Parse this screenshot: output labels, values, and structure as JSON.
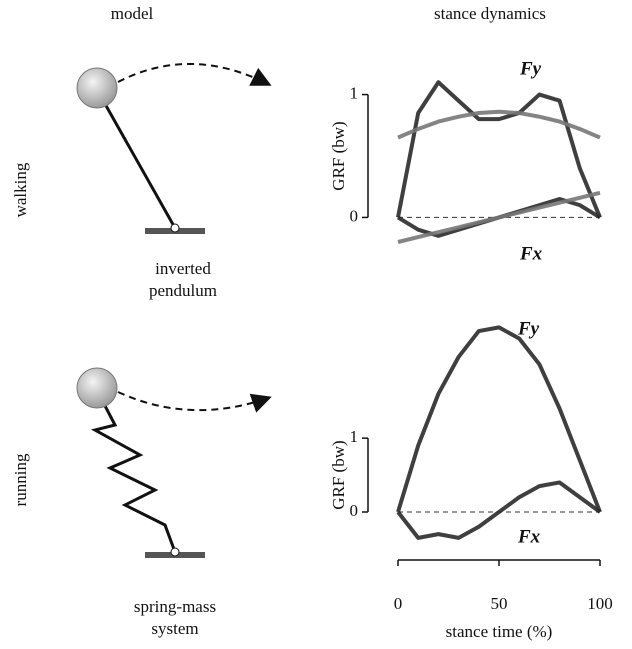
{
  "header": {
    "left": "model",
    "right": "stance dynamics"
  },
  "rows": [
    {
      "label": "walking",
      "model_label": [
        "inverted",
        "pendulum"
      ]
    },
    {
      "label": "running",
      "model_label": [
        "spring-mass",
        "system"
      ]
    }
  ],
  "chart_data": [
    {
      "type": "line",
      "ylabel": "GRF (bw)",
      "xlim": [
        0,
        100
      ],
      "ylim": [
        -0.2,
        1.2
      ],
      "yticks": [
        0,
        1
      ],
      "zero_line": true,
      "x": [
        0,
        10,
        20,
        30,
        40,
        50,
        60,
        70,
        80,
        90,
        100
      ],
      "series": [
        {
          "name": "Fy",
          "color": "#2a2a2a",
          "values": [
            0,
            0.85,
            1.1,
            0.95,
            0.8,
            0.8,
            0.85,
            1.0,
            0.95,
            0.4,
            0
          ]
        },
        {
          "name": "Fx",
          "color": "#2a2a2a",
          "values": [
            0,
            -0.1,
            -0.15,
            -0.1,
            -0.05,
            0,
            0.05,
            0.1,
            0.15,
            0.1,
            0
          ]
        },
        {
          "color": "#777777",
          "values": [
            0.65,
            0.72,
            0.78,
            0.82,
            0.85,
            0.86,
            0.85,
            0.82,
            0.78,
            0.72,
            0.65
          ]
        },
        {
          "color": "#777777",
          "values": [
            -0.2,
            -0.16,
            -0.12,
            -0.08,
            -0.04,
            0,
            0.04,
            0.08,
            0.12,
            0.16,
            0.2
          ]
        }
      ]
    },
    {
      "type": "line",
      "ylabel": "GRF (bw)",
      "xlabel": "stance time (%)",
      "xlim": [
        0,
        100
      ],
      "ylim": [
        -0.65,
        2.6
      ],
      "yticks": [
        0,
        1
      ],
      "xticks": [
        0,
        50,
        100
      ],
      "zero_line": true,
      "x": [
        0,
        10,
        20,
        30,
        40,
        50,
        60,
        70,
        80,
        90,
        100
      ],
      "series": [
        {
          "name": "Fy",
          "color": "#2a2a2a",
          "values": [
            0,
            0.9,
            1.6,
            2.1,
            2.45,
            2.5,
            2.35,
            2.0,
            1.4,
            0.7,
            0
          ]
        },
        {
          "name": "Fx",
          "color": "#2a2a2a",
          "values": [
            0,
            -0.35,
            -0.3,
            -0.35,
            -0.2,
            0,
            0.2,
            0.35,
            0.4,
            0.2,
            0
          ]
        }
      ]
    }
  ]
}
